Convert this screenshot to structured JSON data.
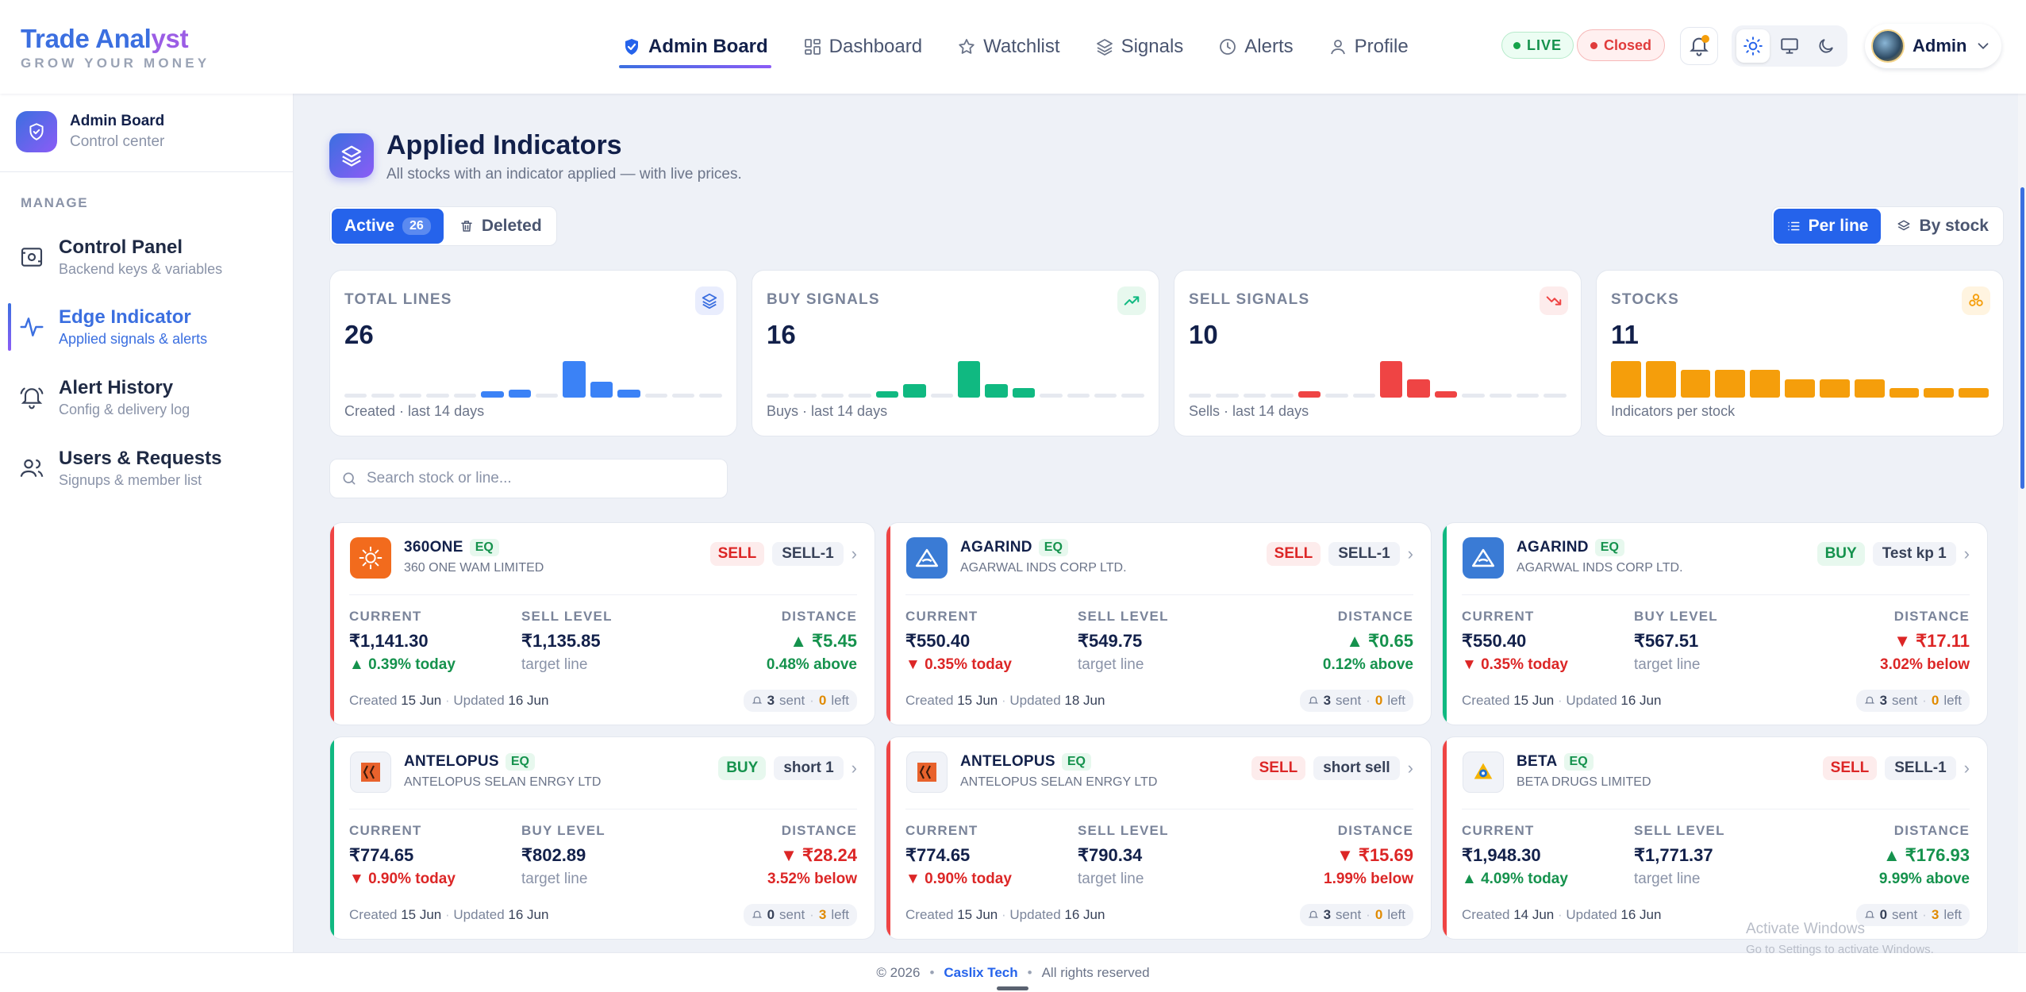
{
  "app": {
    "title_a": "Trade Anal",
    "title_b": "yst",
    "subtitle": "GROW YOUR MONEY"
  },
  "nav": {
    "items": [
      {
        "label": "Admin Board",
        "icon": "shield-check-icon",
        "active": true
      },
      {
        "label": "Dashboard",
        "icon": "grid-icon"
      },
      {
        "label": "Watchlist",
        "icon": "star-icon"
      },
      {
        "label": "Signals",
        "icon": "layers-icon"
      },
      {
        "label": "Alerts",
        "icon": "clock-icon"
      },
      {
        "label": "Profile",
        "icon": "user-icon"
      }
    ]
  },
  "header": {
    "live": "LIVE",
    "market": "Closed",
    "user": "Admin"
  },
  "sidebar": {
    "title": "Admin Board",
    "subtitle": "Control center",
    "section": "MANAGE",
    "items": [
      {
        "title": "Control Panel",
        "sub": "Backend keys & variables"
      },
      {
        "title": "Edge Indicator",
        "sub": "Applied signals & alerts"
      },
      {
        "title": "Alert History",
        "sub": "Config & delivery log"
      },
      {
        "title": "Users & Requests",
        "sub": "Signups & member list"
      }
    ]
  },
  "page": {
    "title": "Applied Indicators",
    "subtitle": "All stocks with an indicator applied — with live prices."
  },
  "tabs": {
    "active": "Active",
    "active_count": "26",
    "deleted": "Deleted",
    "per_line": "Per line",
    "by_stock": "By stock"
  },
  "kpis": [
    {
      "label": "TOTAL LINES",
      "value": "26",
      "foot": "Created · last 14 days",
      "color": "#3b82f6",
      "icon_bg": "#e9edfd",
      "bars": [
        0,
        0,
        0,
        0,
        0,
        1,
        2,
        0,
        9,
        4,
        2,
        0,
        0,
        0
      ]
    },
    {
      "label": "BUY SIGNALS",
      "value": "16",
      "foot": "Buys · last 14 days",
      "color": "#10b981",
      "icon_bg": "#e7f8ee",
      "bars": [
        0,
        0,
        0,
        0,
        1,
        3,
        0,
        8,
        3,
        2,
        0,
        0,
        0,
        0
      ]
    },
    {
      "label": "SELL SIGNALS",
      "value": "10",
      "foot": "Sells · last 14 days",
      "color": "#ef4444",
      "icon_bg": "#fdecec",
      "bars": [
        0,
        0,
        0,
        0,
        1,
        0,
        0,
        6,
        3,
        1,
        0,
        0,
        0,
        0
      ]
    },
    {
      "label": "STOCKS",
      "value": "11",
      "foot": "Indicators per stock",
      "color": "#f59e0b",
      "icon_bg": "#fff4e0",
      "bars": [
        4,
        4,
        3,
        3,
        3,
        2,
        2,
        2,
        1,
        1,
        1
      ]
    }
  ],
  "search": {
    "placeholder": "Search stock or line..."
  },
  "cards": [
    {
      "symbol": "360ONE",
      "eq": "EQ",
      "name": "360 ONE WAM LIMITED",
      "signal": "SELL",
      "line": "SELL-1",
      "current": "₹1,141.30",
      "change": "▲ 0.39% today",
      "change_dir": "up",
      "level_label": "SELL LEVEL",
      "level": "₹1,135.85",
      "level_sub": "target line",
      "distance": "▲ ₹5.45",
      "distance_sub": "0.48% above",
      "dist_dir": "up",
      "created": "15 Jun",
      "updated": "16 Jun",
      "sent": "3",
      "left": "0",
      "logo": "orange"
    },
    {
      "symbol": "AGARIND",
      "eq": "EQ",
      "name": "AGARWAL INDS CORP LTD.",
      "signal": "SELL",
      "line": "SELL-1",
      "current": "₹550.40",
      "change": "▼ 0.35% today",
      "change_dir": "down",
      "level_label": "SELL LEVEL",
      "level": "₹549.75",
      "level_sub": "target line",
      "distance": "▲ ₹0.65",
      "distance_sub": "0.12% above",
      "dist_dir": "up",
      "created": "15 Jun",
      "updated": "18 Jun",
      "sent": "3",
      "left": "0",
      "logo": "blue"
    },
    {
      "symbol": "AGARIND",
      "eq": "EQ",
      "name": "AGARWAL INDS CORP LTD.",
      "signal": "BUY",
      "line": "Test kp 1",
      "current": "₹550.40",
      "change": "▼ 0.35% today",
      "change_dir": "down",
      "level_label": "BUY LEVEL",
      "level": "₹567.51",
      "level_sub": "target line",
      "distance": "▼ ₹17.11",
      "distance_sub": "3.02% below",
      "dist_dir": "down",
      "created": "15 Jun",
      "updated": "16 Jun",
      "sent": "3",
      "left": "0",
      "logo": "blue"
    },
    {
      "symbol": "ANTELOPUS",
      "eq": "EQ",
      "name": "ANTELOPUS SELAN ENRGY LTD",
      "signal": "BUY",
      "line": "short 1",
      "current": "₹774.65",
      "change": "▼ 0.90% today",
      "change_dir": "down",
      "level_label": "BUY LEVEL",
      "level": "₹802.89",
      "level_sub": "target line",
      "distance": "▼ ₹28.24",
      "distance_sub": "3.52% below",
      "dist_dir": "down",
      "created": "15 Jun",
      "updated": "16 Jun",
      "sent": "0",
      "left": "3",
      "logo": "antelopus"
    },
    {
      "symbol": "ANTELOPUS",
      "eq": "EQ",
      "name": "ANTELOPUS SELAN ENRGY LTD",
      "signal": "SELL",
      "line": "short sell",
      "current": "₹774.65",
      "change": "▼ 0.90% today",
      "change_dir": "down",
      "level_label": "SELL LEVEL",
      "level": "₹790.34",
      "level_sub": "target line",
      "distance": "▼ ₹15.69",
      "distance_sub": "1.99% below",
      "dist_dir": "down",
      "created": "15 Jun",
      "updated": "16 Jun",
      "sent": "3",
      "left": "0",
      "logo": "antelopus"
    },
    {
      "symbol": "BETA",
      "eq": "EQ",
      "name": "BETA DRUGS LIMITED",
      "signal": "SELL",
      "line": "SELL-1",
      "current": "₹1,948.30",
      "change": "▲ 4.09% today",
      "change_dir": "up",
      "level_label": "SELL LEVEL",
      "level": "₹1,771.37",
      "level_sub": "target line",
      "distance": "▲ ₹176.93",
      "distance_sub": "9.99% above",
      "dist_dir": "up",
      "created": "14 Jun",
      "updated": "16 Jun",
      "sent": "0",
      "left": "3",
      "logo": "beta"
    }
  ],
  "card_labels": {
    "current": "CURRENT",
    "distance": "DISTANCE",
    "created": "Created",
    "updated": "Updated",
    "sent": "sent",
    "left": "left"
  },
  "footer": {
    "copy": "© 2026",
    "brand": "Caslix Tech",
    "rights": "All rights reserved"
  },
  "watermark": {
    "line1": "Activate Windows",
    "line2": "Go to Settings to activate Windows."
  }
}
